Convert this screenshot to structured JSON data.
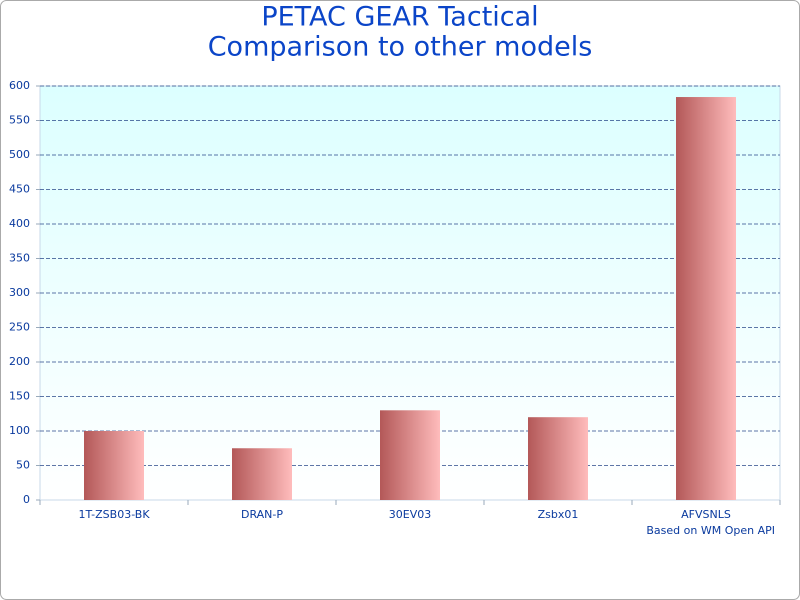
{
  "chart_data": {
    "type": "bar",
    "title": [
      "PETAC GEAR Tactical",
      "Comparison to other models"
    ],
    "categories": [
      "1T-ZSB03-BK",
      "DRAN-P",
      "30EV03",
      "Zsbx01",
      "AFVSNLS"
    ],
    "values": [
      100,
      75,
      130,
      120,
      584
    ],
    "color": [
      "#b35858",
      "#ffbcbc"
    ],
    "ylim": [
      0,
      600
    ],
    "yticks": [
      0,
      50,
      100,
      150,
      200,
      250,
      300,
      350,
      400,
      450,
      500,
      550,
      600
    ],
    "grid": true,
    "annotation": "Based on WM Open API"
  }
}
